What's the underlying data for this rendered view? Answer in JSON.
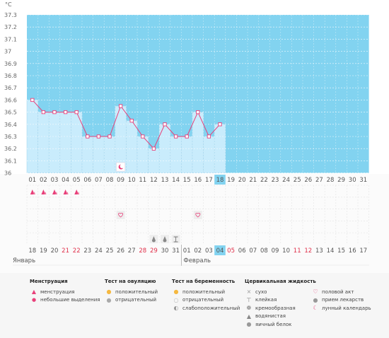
{
  "chart_data": {
    "type": "line",
    "ylabel": "°C",
    "y_ticks": [
      "37.3",
      "37.2",
      "37.1",
      "37",
      "36.9",
      "36.8",
      "36.7",
      "36.6",
      "36.5",
      "36.4",
      "36.3",
      "36.2",
      "36.1",
      "36"
    ],
    "ylim": [
      36.0,
      37.3
    ],
    "x": [
      "01",
      "02",
      "03",
      "04",
      "05",
      "06",
      "07",
      "08",
      "09",
      "10",
      "11",
      "12",
      "13",
      "14",
      "15",
      "16",
      "17",
      "18",
      "19",
      "20",
      "21",
      "22",
      "23",
      "24",
      "25",
      "26",
      "27",
      "28",
      "29",
      "30",
      "31"
    ],
    "temperatures": [
      36.6,
      36.5,
      36.5,
      36.5,
      36.5,
      36.3,
      36.3,
      36.3,
      36.55,
      36.43,
      36.3,
      36.2,
      36.4,
      36.3,
      36.3,
      36.5,
      36.3,
      36.4
    ],
    "highlight_day": "18",
    "grid": true,
    "line_color": "#e8407a",
    "bar_color": "#c9ecfc",
    "bg_color": "#82d3f0"
  },
  "calendar": {
    "top_days": [
      "01",
      "02",
      "03",
      "04",
      "05",
      "06",
      "07",
      "08",
      "09",
      "10",
      "11",
      "12",
      "13",
      "14",
      "15",
      "16",
      "17",
      "18",
      "19",
      "20",
      "21",
      "22",
      "23",
      "24",
      "25",
      "26",
      "27",
      "28",
      "29",
      "30",
      "31"
    ],
    "bottom_days": [
      {
        "d": "18",
        "red": false
      },
      {
        "d": "19",
        "red": false
      },
      {
        "d": "20",
        "red": false
      },
      {
        "d": "21",
        "red": true
      },
      {
        "d": "22",
        "red": true
      },
      {
        "d": "23",
        "red": false
      },
      {
        "d": "24",
        "red": false
      },
      {
        "d": "25",
        "red": false
      },
      {
        "d": "26",
        "red": false
      },
      {
        "d": "27",
        "red": false
      },
      {
        "d": "28",
        "red": true
      },
      {
        "d": "29",
        "red": true
      },
      {
        "d": "30",
        "red": false
      },
      {
        "d": "31",
        "red": false
      },
      {
        "d": "01",
        "red": false
      },
      {
        "d": "02",
        "red": false
      },
      {
        "d": "03",
        "red": false
      },
      {
        "d": "04",
        "red": false
      },
      {
        "d": "05",
        "red": true
      },
      {
        "d": "06",
        "red": false
      },
      {
        "d": "07",
        "red": false
      },
      {
        "d": "08",
        "red": false
      },
      {
        "d": "09",
        "red": false
      },
      {
        "d": "10",
        "red": false
      },
      {
        "d": "11",
        "red": true
      },
      {
        "d": "12",
        "red": true
      },
      {
        "d": "13",
        "red": false
      },
      {
        "d": "14",
        "red": false
      },
      {
        "d": "15",
        "red": false
      },
      {
        "d": "16",
        "red": false
      },
      {
        "d": "17",
        "red": false
      }
    ],
    "month_left": "Январь",
    "month_right": "Февраль"
  },
  "legend": {
    "menstruation": {
      "title": "Менструация",
      "items": [
        {
          "icon": "menstruation-icon",
          "label": "менструация"
        },
        {
          "icon": "drop-icon",
          "label": "небольшие выделения"
        }
      ]
    },
    "ovulation": {
      "title": "Тест на овуляцию",
      "items": [
        {
          "icon": "positive-icon",
          "label": "положительный"
        },
        {
          "icon": "negative-icon",
          "label": "отрицательный"
        }
      ]
    },
    "pregnancy": {
      "title": "Тест на беременность",
      "items": [
        {
          "icon": "positive-icon",
          "label": "положительный"
        },
        {
          "icon": "negative-icon",
          "label": "отрицательный"
        },
        {
          "icon": "weak-positive-icon",
          "label": "слабоположительный"
        }
      ]
    },
    "cervical": {
      "title": "Цервикальная жидкость",
      "items": [
        {
          "icon": "dry-icon",
          "label": "сухо"
        },
        {
          "icon": "sticky-icon",
          "label": "клейкая"
        },
        {
          "icon": "creamy-icon",
          "label": "кремообразная"
        },
        {
          "icon": "watery-icon",
          "label": "водянистая"
        },
        {
          "icon": "egg-white-icon",
          "label": "яичный белок"
        }
      ]
    },
    "other": {
      "items": [
        {
          "icon": "heart-icon",
          "label": "половой акт"
        },
        {
          "icon": "pill-icon",
          "label": "прием лекарств"
        },
        {
          "icon": "moon-icon",
          "label": "лунный календарь"
        }
      ]
    }
  }
}
